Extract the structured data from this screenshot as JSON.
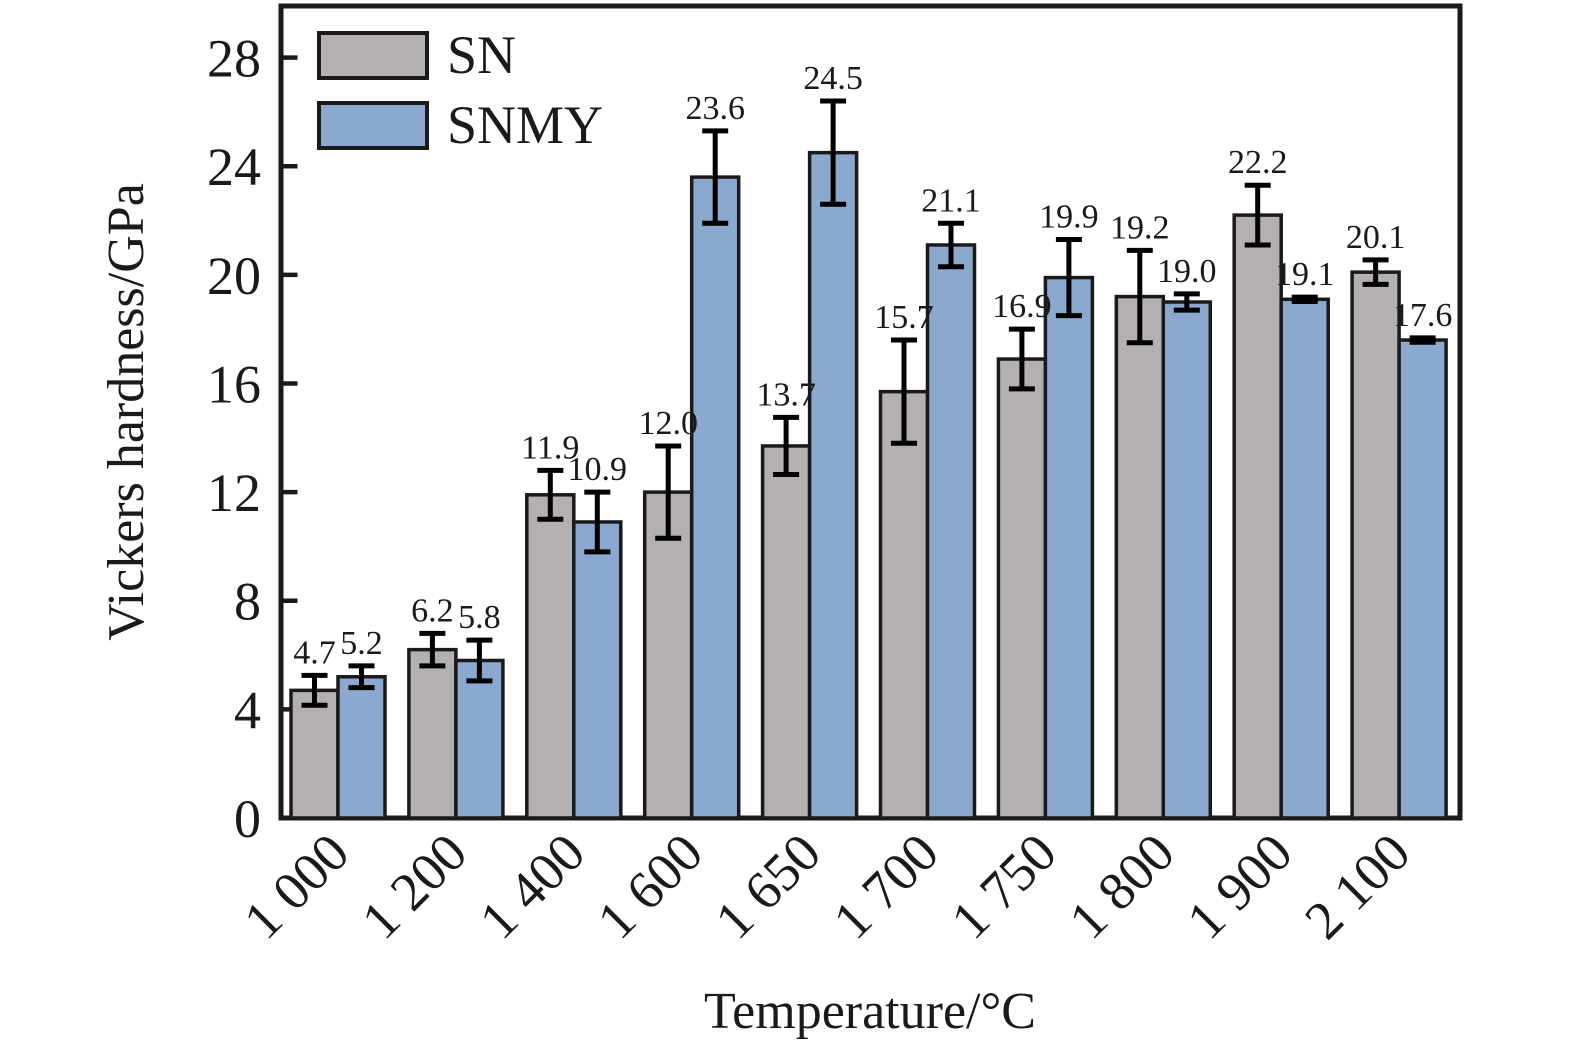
{
  "chart_data": {
    "type": "bar",
    "title": "",
    "xlabel": "Temperature/°C",
    "ylabel": "Vickers hardness/GPa",
    "categories": [
      "1 000",
      "1 200",
      "1 400",
      "1 600",
      "1 650",
      "1 700",
      "1 750",
      "1 800",
      "1 900",
      "2 100"
    ],
    "series": [
      {
        "name": "SN",
        "color": "#b4b0af",
        "values": [
          4.7,
          6.2,
          11.9,
          12.0,
          13.7,
          15.7,
          16.9,
          19.2,
          22.2,
          20.1
        ],
        "errors": [
          0.55,
          0.6,
          0.9,
          1.7,
          1.05,
          1.9,
          1.1,
          1.7,
          1.1,
          0.45
        ]
      },
      {
        "name": "SNMY",
        "color": "#8ba9cf",
        "values": [
          5.2,
          5.8,
          10.9,
          23.6,
          24.5,
          21.1,
          19.9,
          19.0,
          19.1,
          17.6
        ],
        "errors": [
          0.4,
          0.75,
          1.1,
          1.7,
          1.9,
          0.8,
          1.4,
          0.3,
          0.08,
          0.08
        ]
      }
    ],
    "value_label_decimals": 1,
    "y_ticks": [
      0,
      4,
      8,
      12,
      16,
      20,
      24,
      28
    ],
    "ylim": [
      0,
      29.9
    ],
    "grid": false,
    "legend_position": "top-left",
    "axis_color": "#1a1a1a",
    "error_bar_color": "#000000"
  }
}
